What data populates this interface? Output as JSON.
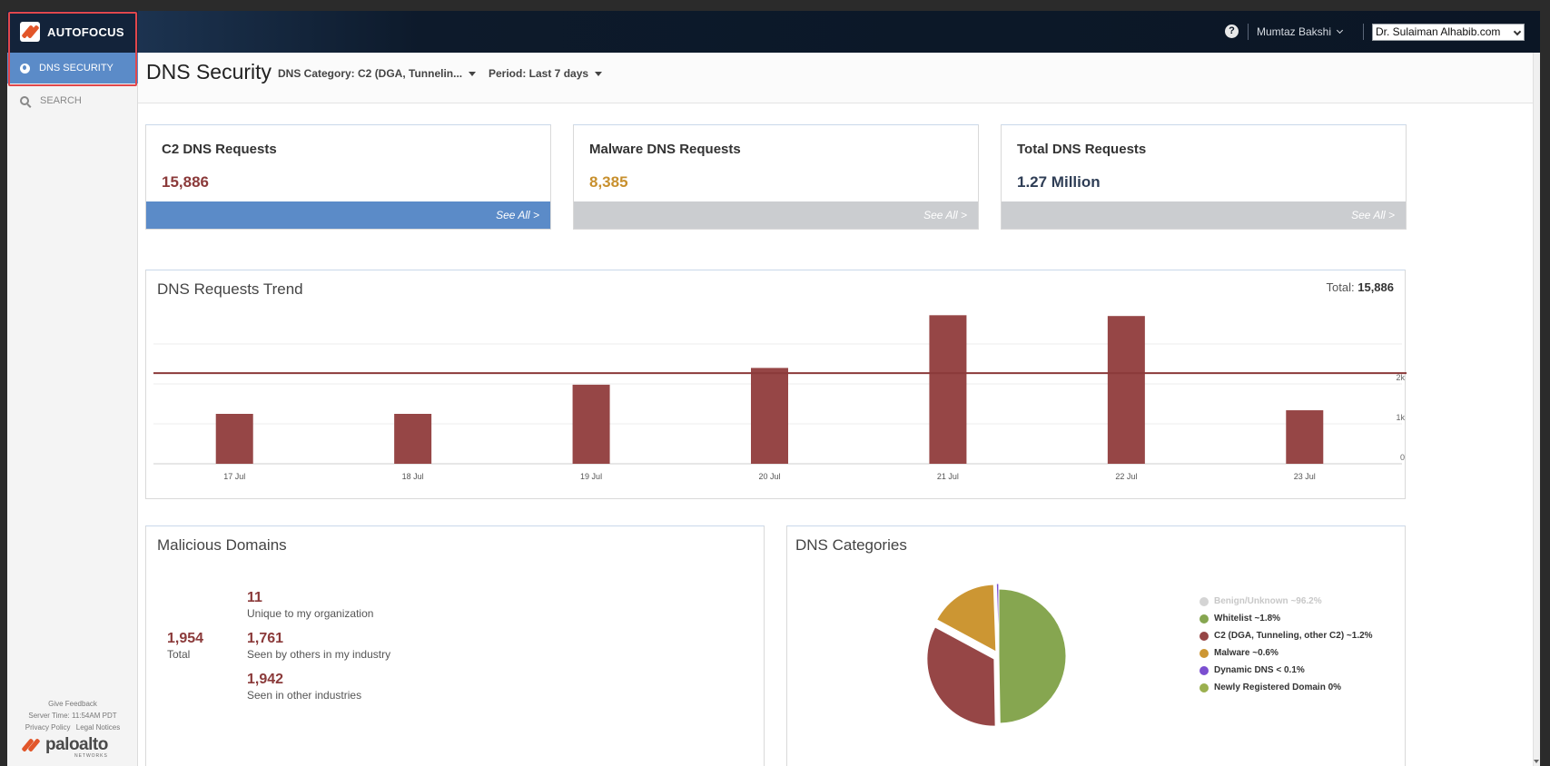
{
  "sidebar": {
    "brand": "AUTOFOCUS",
    "items": [
      {
        "label": "DNS SECURITY"
      },
      {
        "label": "SEARCH"
      }
    ],
    "footer": {
      "feedback": "Give Feedback",
      "server_time": "Server Time: 11:54AM PDT",
      "privacy": "Privacy Policy",
      "legal": "Legal Notices",
      "vendor": "paloalto",
      "vendor_sub": "NETWORKS"
    }
  },
  "header": {
    "help": "?",
    "user": "Mumtaz Bakshi",
    "org": "Dr. Sulaiman Alhabib.com"
  },
  "page": {
    "title": "DNS Security",
    "filters": [
      {
        "label": "DNS Category: C2 (DGA, Tunnelin..."
      },
      {
        "label": "Period: Last 7 days"
      }
    ]
  },
  "stats": [
    {
      "title": "C2 DNS Requests",
      "value": "15,886",
      "color": "#8b3a3a",
      "link": "See All >"
    },
    {
      "title": "Malware DNS Requests",
      "value": "8,385",
      "color": "#c8902e",
      "link": "See All >"
    },
    {
      "title": "Total DNS Requests",
      "value": "1.27 Million",
      "color": "#2f3e56",
      "link": "See All >"
    }
  ],
  "trend": {
    "title": "DNS Requests Trend",
    "total_label": "Total:",
    "total_value": "15,886"
  },
  "chart_data": {
    "type": "bar",
    "categories": [
      "17 Jul",
      "18 Jul",
      "19 Jul",
      "20 Jul",
      "21 Jul",
      "22 Jul",
      "23 Jul"
    ],
    "values": [
      1250,
      1250,
      1980,
      2400,
      3720,
      3700,
      1340
    ],
    "reference_line": 2270,
    "yticks": [
      {
        "v": 0,
        "label": "0"
      },
      {
        "v": 1000,
        "label": "1k"
      },
      {
        "v": 2000,
        "label": "2k"
      }
    ],
    "ylim": [
      0,
      4000
    ],
    "bar_color": "#964646",
    "grid": true
  },
  "malicious": {
    "title": "Malicious Domains",
    "total_value": "1,954",
    "total_label": "Total",
    "rows": [
      {
        "value": "11",
        "label": "Unique to my organization"
      },
      {
        "value": "1,761",
        "label": "Seen by others in my industry"
      },
      {
        "value": "1,942",
        "label": "Seen in other industries"
      }
    ]
  },
  "categories": {
    "title": "DNS Categories",
    "legend": [
      {
        "label": "Benign/Unknown ~96.2%",
        "color": "#d4d4d4"
      },
      {
        "label": "Whitelist ~1.8%",
        "color": "#86a650"
      },
      {
        "label": "C2 (DGA, Tunneling, other C2) ~1.2%",
        "color": "#964646"
      },
      {
        "label": "Malware ~0.6%",
        "color": "#cc9633"
      },
      {
        "label": "Dynamic DNS < 0.1%",
        "color": "#7b4fd0"
      },
      {
        "label": "Newly Registered Domain 0%",
        "color": "#9bb04f"
      }
    ],
    "pie": [
      {
        "name": "Whitelist ~1.8%",
        "value": 1.8,
        "color": "#86a650"
      },
      {
        "name": "C2 (DGA, Tunneling, other C2) ~1.2%",
        "value": 1.2,
        "color": "#964646"
      },
      {
        "name": "Malware ~0.6%",
        "value": 0.6,
        "color": "#cc9633"
      },
      {
        "name": "Dynamic DNS < 0.1%",
        "value": 0.02,
        "color": "#7b4fd0"
      }
    ]
  }
}
